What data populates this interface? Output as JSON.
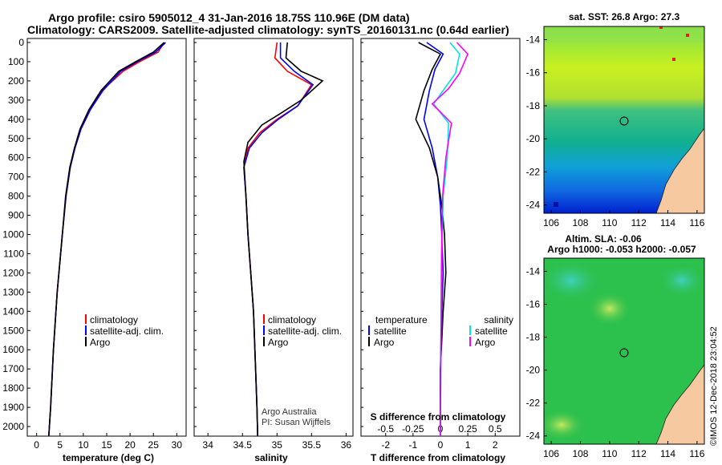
{
  "header": {
    "title_line1": "Argo profile: csiro 5905012_4 31-Jan-2016 18.75S 110.96E (DM data)",
    "title_line2": "Climatology: CARS2009. Satellite-adjusted climatology: synTS_20160131.nc (0.64d earlier)"
  },
  "colors": {
    "climatology": "#ff0000",
    "satellite": "#0000ff",
    "argo": "#000000",
    "satellite_salinity": "#00e5e5",
    "argo_salinity": "#ff00ff",
    "land": "#f7c9a0"
  },
  "legend": {
    "climatology": "climatology",
    "satellite_adj": "satellite-adj. clim.",
    "argo": "Argo",
    "temperature": "temperature",
    "salinity": "salinity",
    "satellite": "satellite"
  },
  "credits": {
    "line1": "Argo Australia",
    "line2": "PI: Susan Wijffels"
  },
  "map_top": {
    "title": "sat. SST: 26.8 Argo: 27.3"
  },
  "map_bottom": {
    "title_line1": "Altim. SLA: -0.06",
    "title_line2": "Argo h1000: -0.053 h2000: -0.057"
  },
  "stamp": "©IMOS 12-Dec-2018 23:04:52",
  "chart_data": [
    {
      "type": "line",
      "xlabel": "temperature (deg C)",
      "xlim": [
        -2,
        32
      ],
      "ylim": [
        2050,
        0
      ],
      "xticks": [
        0,
        5,
        10,
        15,
        20,
        25,
        30
      ],
      "yticks": [
        0,
        100,
        200,
        300,
        400,
        500,
        600,
        700,
        800,
        900,
        1000,
        1100,
        1200,
        1300,
        1400,
        1500,
        1600,
        1700,
        1800,
        1900,
        2000
      ],
      "series": [
        {
          "name": "climatology",
          "x": [
            27.3,
            26.0,
            22.0,
            18.5,
            14.0,
            11.5,
            9.5,
            8.2,
            7.2,
            6.3,
            5.5,
            4.4,
            3.6,
            3.0,
            2.6
          ],
          "y": [
            0,
            50,
            100,
            150,
            250,
            350,
            450,
            550,
            650,
            800,
            1000,
            1300,
            1600,
            1900,
            2050
          ]
        },
        {
          "name": "satellite-adj. clim.",
          "x": [
            27.6,
            25.5,
            21.5,
            18.0,
            14.2,
            11.5,
            9.5,
            8.2,
            7.2,
            6.3,
            5.5,
            4.4,
            3.6,
            3.0,
            2.6
          ],
          "y": [
            0,
            50,
            100,
            150,
            250,
            350,
            450,
            550,
            650,
            800,
            1000,
            1300,
            1600,
            1900,
            2050
          ]
        },
        {
          "name": "Argo",
          "x": [
            27.3,
            25.0,
            21.2,
            17.6,
            13.8,
            11.2,
            9.3,
            8.1,
            7.1,
            6.2,
            5.5,
            4.4,
            3.6,
            3.0,
            2.6
          ],
          "y": [
            0,
            50,
            100,
            150,
            250,
            350,
            450,
            550,
            650,
            800,
            1000,
            1300,
            1600,
            1900,
            2050
          ]
        }
      ]
    },
    {
      "type": "line",
      "xlabel": "salinity",
      "xlim": [
        33.8,
        36.1
      ],
      "ylim": [
        2050,
        0
      ],
      "xticks": [
        34,
        34.5,
        35,
        35.5,
        36
      ],
      "series": [
        {
          "name": "climatology",
          "x": [
            35.0,
            34.97,
            35.15,
            35.5,
            35.3,
            35.0,
            34.75,
            34.58,
            34.52,
            34.55,
            34.58,
            34.62,
            34.66,
            34.69,
            34.71,
            34.72
          ],
          "y": [
            0,
            80,
            150,
            220,
            330,
            400,
            470,
            550,
            650,
            800,
            1000,
            1200,
            1400,
            1700,
            1900,
            2050
          ]
        },
        {
          "name": "satellite-adj. clim.",
          "x": [
            35.05,
            35.05,
            35.25,
            35.52,
            35.3,
            35.02,
            34.78,
            34.6,
            34.52,
            34.55,
            34.58,
            34.62,
            34.66,
            34.69,
            34.71,
            34.72
          ],
          "y": [
            0,
            80,
            150,
            220,
            330,
            400,
            470,
            550,
            650,
            800,
            1000,
            1200,
            1400,
            1700,
            1900,
            2050
          ]
        },
        {
          "name": "Argo",
          "x": [
            35.15,
            35.13,
            35.35,
            35.66,
            35.35,
            35.05,
            34.78,
            34.58,
            34.52,
            34.55,
            34.58,
            34.62,
            34.66,
            34.69,
            34.71,
            34.72
          ],
          "y": [
            0,
            80,
            150,
            200,
            300,
            370,
            430,
            520,
            620,
            800,
            1000,
            1200,
            1400,
            1700,
            1900,
            2050
          ]
        }
      ]
    },
    {
      "type": "line",
      "xlabel": "T difference from climatology",
      "xlabel_top": "S difference from climatology",
      "xlim": [
        -2.9,
        2.9
      ],
      "ylim": [
        2050,
        0
      ],
      "xticks": [
        -2,
        -1,
        0,
        1,
        2
      ],
      "xticks_top": [
        "-0.5",
        "-0.25",
        "0",
        "0.25",
        "0.5"
      ],
      "series": [
        {
          "name": "temperature satellite",
          "x": [
            -0.5,
            0.1,
            -0.2,
            -0.4,
            -0.6,
            -0.3,
            -0.1,
            0.0,
            0.05,
            0.1,
            0.05,
            0.0,
            0.0
          ],
          "y": [
            0,
            60,
            140,
            250,
            400,
            550,
            700,
            850,
            1000,
            1200,
            1400,
            1700,
            2050
          ]
        },
        {
          "name": "temperature Argo",
          "x": [
            -0.8,
            0.0,
            -0.3,
            -0.6,
            -0.9,
            -0.4,
            -0.1,
            0.05,
            0.15,
            0.2,
            0.1,
            0.0,
            0.0
          ],
          "y": [
            0,
            60,
            140,
            250,
            400,
            550,
            700,
            850,
            1000,
            1200,
            1400,
            1700,
            2050
          ]
        },
        {
          "name": "salinity satellite",
          "x": [
            0.35,
            0.7,
            0.55,
            0.15,
            -0.25,
            0.3,
            0.25,
            0.1,
            0.05,
            0.02,
            0.0
          ],
          "y": [
            0,
            60,
            160,
            240,
            320,
            420,
            600,
            800,
            1100,
            1500,
            2050
          ]
        },
        {
          "name": "salinity Argo",
          "x": [
            0.6,
            1.0,
            0.7,
            0.3,
            -0.3,
            0.4,
            0.2,
            0.08,
            0.04,
            0.02,
            0.0
          ],
          "y": [
            0,
            60,
            160,
            240,
            320,
            420,
            600,
            800,
            1100,
            1500,
            2050
          ]
        }
      ]
    },
    {
      "type": "heatmap",
      "title": "sat. SST: 26.8 Argo: 27.3",
      "xlim": [
        105.5,
        116.5
      ],
      "ylim": [
        -24.5,
        -13.2
      ],
      "xticks": [
        106,
        108,
        110,
        112,
        114,
        116
      ],
      "yticks": [
        -14,
        -16,
        -18,
        -20,
        -22,
        -24
      ],
      "marker": {
        "lon": 110.96,
        "lat": -18.75
      }
    },
    {
      "type": "heatmap",
      "title": "Altim. SLA: -0.06",
      "xlim": [
        105.5,
        116.5
      ],
      "ylim": [
        -24.5,
        -13.2
      ],
      "xticks": [
        106,
        108,
        110,
        112,
        114,
        116
      ],
      "yticks": [
        -14,
        -16,
        -18,
        -20,
        -22,
        -24
      ],
      "marker": {
        "lon": 110.96,
        "lat": -18.75
      }
    }
  ]
}
